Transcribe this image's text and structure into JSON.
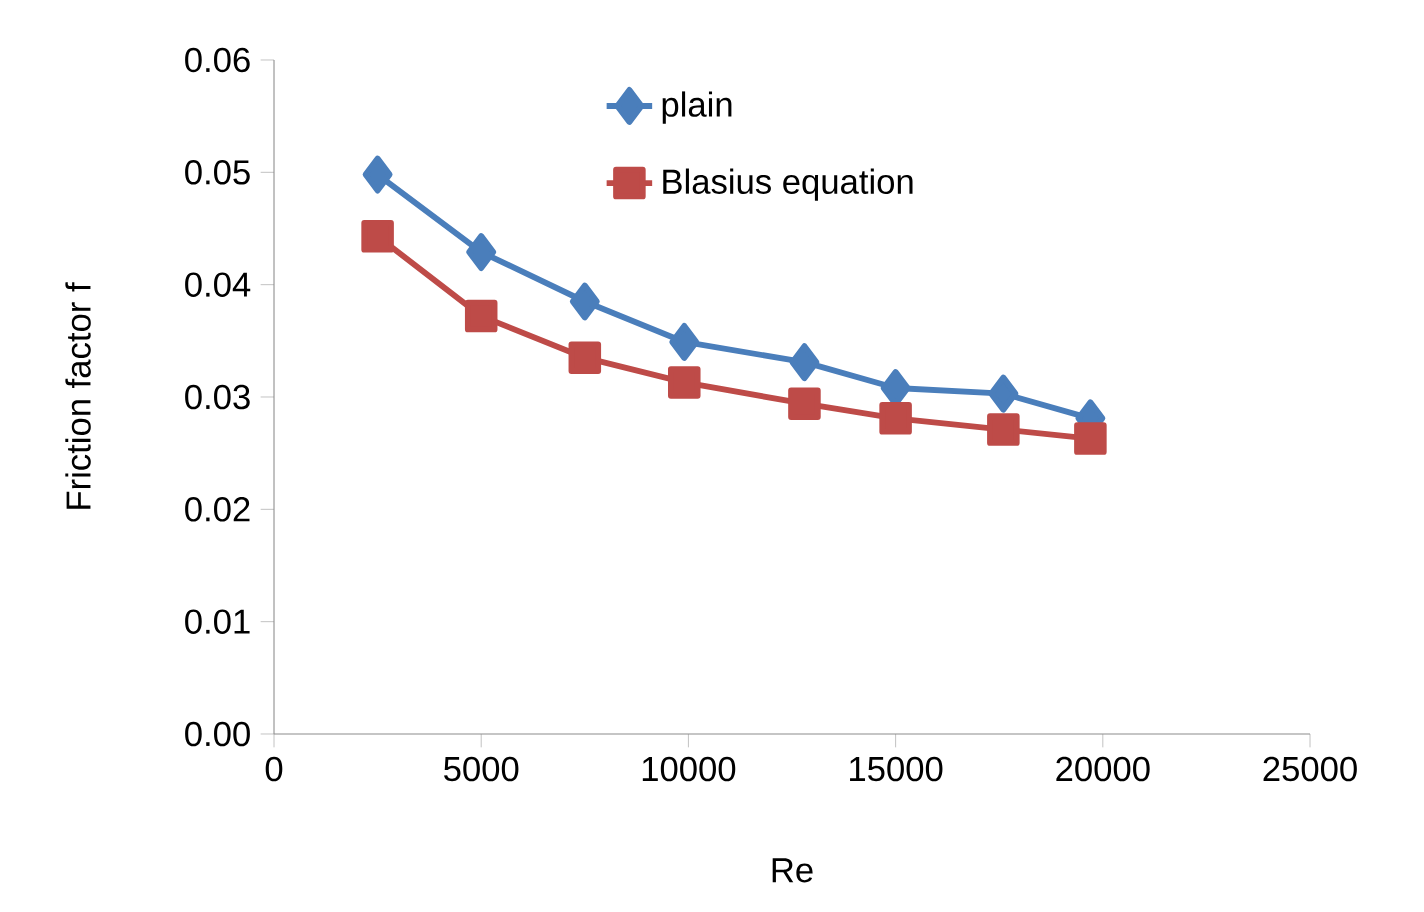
{
  "chart_data": {
    "type": "line",
    "xlabel": "Re",
    "ylabel": "Friction factor f",
    "xlim": [
      0,
      25000
    ],
    "xticks": [
      0,
      5000,
      10000,
      15000,
      20000,
      25000
    ],
    "ylim": [
      0,
      0.06
    ],
    "yticks": [
      {
        "value": 0,
        "label": "0.00"
      },
      {
        "value": 0.01,
        "label": "0.01"
      },
      {
        "value": 0.02,
        "label": "0.02"
      },
      {
        "value": 0.03,
        "label": "0.03"
      },
      {
        "value": 0.04,
        "label": "0.04"
      },
      {
        "value": 0.05,
        "label": "0.05"
      },
      {
        "value": 0.06,
        "label": "0.06"
      }
    ],
    "grid": false,
    "legend": "top",
    "line_style": "solid",
    "series": [
      {
        "name": "plain",
        "color": "#4a7ebb",
        "marker": "diamond",
        "x": [
          2500,
          5000,
          7500,
          9900,
          12800,
          15000,
          17600,
          19700
        ],
        "values": [
          0.0498,
          0.0429,
          0.0385,
          0.0349,
          0.0331,
          0.0308,
          0.0303,
          0.0281
        ]
      },
      {
        "name": "Blasius equation",
        "color": "#be4b48",
        "marker": "square",
        "x": [
          2500,
          5000,
          7500,
          9900,
          12800,
          15000,
          17600,
          19700
        ],
        "values": [
          0.0443,
          0.0372,
          0.0335,
          0.0313,
          0.0294,
          0.0281,
          0.0271,
          0.0263
        ]
      }
    ]
  }
}
